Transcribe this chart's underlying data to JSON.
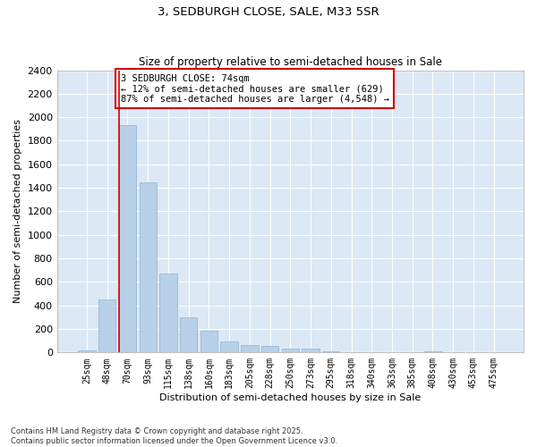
{
  "title": "3, SEDBURGH CLOSE, SALE, M33 5SR",
  "subtitle": "Size of property relative to semi-detached houses in Sale",
  "xlabel": "Distribution of semi-detached houses by size in Sale",
  "ylabel": "Number of semi-detached properties",
  "bar_color": "#b8d0e8",
  "bar_edge_color": "#8ab0d0",
  "background_color": "#dce8f5",
  "grid_color": "white",
  "categories": [
    "25sqm",
    "48sqm",
    "70sqm",
    "93sqm",
    "115sqm",
    "138sqm",
    "160sqm",
    "183sqm",
    "205sqm",
    "228sqm",
    "250sqm",
    "273sqm",
    "295sqm",
    "318sqm",
    "340sqm",
    "363sqm",
    "385sqm",
    "408sqm",
    "430sqm",
    "453sqm",
    "475sqm"
  ],
  "values": [
    20,
    450,
    1930,
    1450,
    670,
    300,
    185,
    95,
    65,
    55,
    35,
    30,
    12,
    0,
    0,
    0,
    0,
    12,
    0,
    0,
    0
  ],
  "ylim": [
    0,
    2400
  ],
  "yticks": [
    0,
    200,
    400,
    600,
    800,
    1000,
    1200,
    1400,
    1600,
    1800,
    2000,
    2200,
    2400
  ],
  "annotation_text": "3 SEDBURGH CLOSE: 74sqm\n← 12% of semi-detached houses are smaller (629)\n87% of semi-detached houses are larger (4,548) →",
  "annotation_box_color": "#cc0000",
  "vline_color": "#cc0000",
  "vline_x_index": 2,
  "footnote": "Contains HM Land Registry data © Crown copyright and database right 2025.\nContains public sector information licensed under the Open Government Licence v3.0.",
  "figsize": [
    6.0,
    5.0
  ],
  "dpi": 100
}
